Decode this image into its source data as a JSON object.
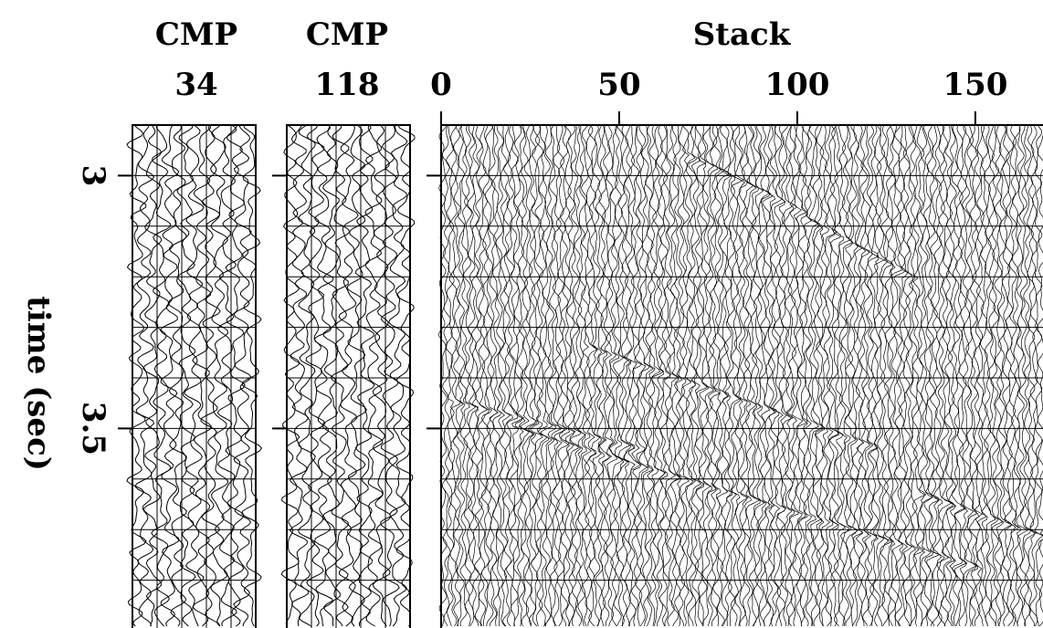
{
  "chart_data": {
    "type": "seismic",
    "y_label": "time (sec)",
    "ylim": [
      2.9,
      3.9
    ],
    "yticks": [
      3,
      3.5
    ],
    "y_gridlines": [
      3,
      3.1,
      3.2,
      3.3,
      3.4,
      3.5,
      3.6,
      3.7,
      3.8
    ],
    "panels": [
      {
        "title": "CMP",
        "subtitle": "34"
      },
      {
        "title": "CMP",
        "subtitle": "118"
      },
      {
        "title": "Stack",
        "xlim": [
          0,
          169
        ],
        "xticks": [
          0,
          50,
          100,
          150
        ]
      }
    ]
  }
}
